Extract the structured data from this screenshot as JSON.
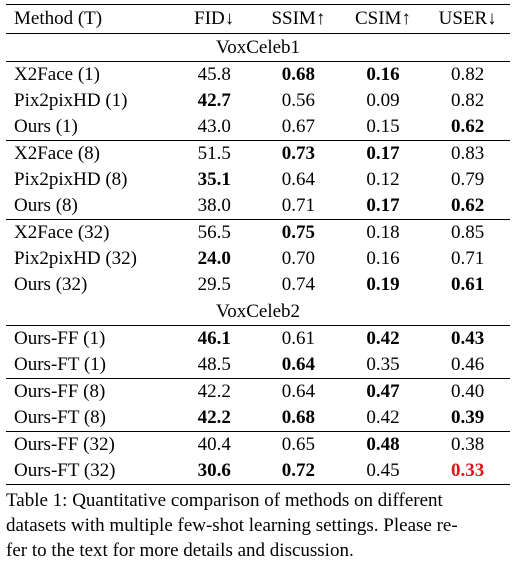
{
  "table": {
    "headers": [
      "Method (T)",
      "FID↓",
      "SSIM↑",
      "CSIM↑",
      "USER↓"
    ],
    "sections": [
      {
        "name": "VoxCeleb1",
        "groups": [
          [
            {
              "method": "X2Face (1)",
              "fid": "45.8",
              "ssim": "0.68",
              "csim": "0.16",
              "user": "0.82",
              "bold": [
                "ssim",
                "csim"
              ]
            },
            {
              "method": "Pix2pixHD (1)",
              "fid": "42.7",
              "ssim": "0.56",
              "csim": "0.09",
              "user": "0.82",
              "bold": [
                "fid"
              ]
            },
            {
              "method": "Ours (1)",
              "fid": "43.0",
              "ssim": "0.67",
              "csim": "0.15",
              "user": "0.62",
              "bold": [
                "user"
              ]
            }
          ],
          [
            {
              "method": "X2Face (8)",
              "fid": "51.5",
              "ssim": "0.73",
              "csim": "0.17",
              "user": "0.83",
              "bold": [
                "ssim",
                "csim"
              ]
            },
            {
              "method": "Pix2pixHD (8)",
              "fid": "35.1",
              "ssim": "0.64",
              "csim": "0.12",
              "user": "0.79",
              "bold": [
                "fid"
              ]
            },
            {
              "method": "Ours (8)",
              "fid": "38.0",
              "ssim": "0.71",
              "csim": "0.17",
              "user": "0.62",
              "bold": [
                "csim",
                "user"
              ]
            }
          ],
          [
            {
              "method": "X2Face (32)",
              "fid": "56.5",
              "ssim": "0.75",
              "csim": "0.18",
              "user": "0.85",
              "bold": [
                "ssim"
              ]
            },
            {
              "method": "Pix2pixHD (32)",
              "fid": "24.0",
              "ssim": "0.70",
              "csim": "0.16",
              "user": "0.71",
              "bold": [
                "fid"
              ]
            },
            {
              "method": "Ours (32)",
              "fid": "29.5",
              "ssim": "0.74",
              "csim": "0.19",
              "user": "0.61",
              "bold": [
                "csim",
                "user"
              ]
            }
          ]
        ]
      },
      {
        "name": "VoxCeleb2",
        "groups": [
          [
            {
              "method": "Ours-FF (1)",
              "fid": "46.1",
              "ssim": "0.61",
              "csim": "0.42",
              "user": "0.43",
              "bold": [
                "fid",
                "csim",
                "user"
              ]
            },
            {
              "method": "Ours-FT (1)",
              "fid": "48.5",
              "ssim": "0.64",
              "csim": "0.35",
              "user": "0.46",
              "bold": [
                "ssim"
              ]
            }
          ],
          [
            {
              "method": "Ours-FF (8)",
              "fid": "42.2",
              "ssim": "0.64",
              "csim": "0.47",
              "user": "0.40",
              "bold": [
                "csim"
              ]
            },
            {
              "method": "Ours-FT (8)",
              "fid": "42.2",
              "ssim": "0.68",
              "csim": "0.42",
              "user": "0.39",
              "bold": [
                "fid",
                "ssim",
                "user"
              ]
            }
          ],
          [
            {
              "method": "Ours-FF (32)",
              "fid": "40.4",
              "ssim": "0.65",
              "csim": "0.48",
              "user": "0.38",
              "bold": [
                "csim"
              ]
            },
            {
              "method": "Ours-FT (32)",
              "fid": "30.6",
              "ssim": "0.72",
              "csim": "0.45",
              "user": "0.33",
              "bold": [
                "fid",
                "ssim",
                "user"
              ],
              "red": [
                "user"
              ]
            }
          ]
        ]
      }
    ]
  },
  "caption": {
    "lines": [
      "Table 1: Quantitative comparison of methods on different",
      "datasets with multiple few-shot learning settings. Please re-",
      "fer to the text for more details and discussion."
    ]
  },
  "colors": {
    "highlight": "#e0141a",
    "text": "#000000"
  }
}
